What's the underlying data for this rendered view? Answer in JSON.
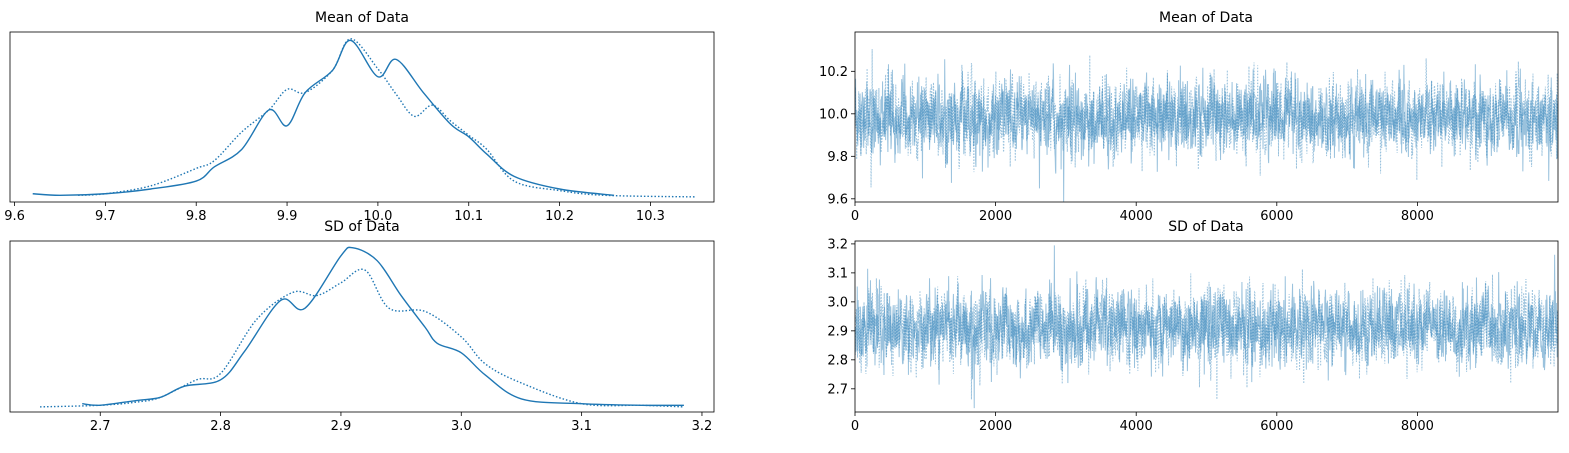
{
  "figure": {
    "panels_titles": [
      "Mean of Data",
      "Mean of Data",
      "SD of Data",
      "SD of Data"
    ]
  },
  "chart_data": [
    {
      "type": "line",
      "kind": "density",
      "title": "Mean of Data",
      "xlabel": "",
      "ylabel": "",
      "xlim": [
        9.595,
        10.37
      ],
      "x_ticks": [
        9.6,
        9.7,
        9.8,
        9.9,
        10.0,
        10.1,
        10.2,
        10.3
      ],
      "y_ticks_visible": false,
      "color": "#1f77b4",
      "series": [
        {
          "style": "solid",
          "x": [
            9.62,
            9.65,
            9.7,
            9.75,
            9.8,
            9.82,
            9.85,
            9.88,
            9.9,
            9.92,
            9.95,
            9.97,
            10.0,
            10.02,
            10.05,
            10.08,
            10.1,
            10.12,
            10.15,
            10.2,
            10.26
          ],
          "y": [
            0.02,
            0.01,
            0.02,
            0.05,
            0.1,
            0.19,
            0.3,
            0.55,
            0.45,
            0.66,
            0.8,
            0.99,
            0.76,
            0.87,
            0.66,
            0.46,
            0.38,
            0.27,
            0.13,
            0.05,
            0.01
          ]
        },
        {
          "style": "dotted",
          "x": [
            9.67,
            9.7,
            9.75,
            9.8,
            9.82,
            9.85,
            9.88,
            9.9,
            9.92,
            9.95,
            9.97,
            10.0,
            10.02,
            10.04,
            10.06,
            10.08,
            10.1,
            10.12,
            10.15,
            10.2,
            10.25,
            10.35
          ],
          "y": [
            0.01,
            0.02,
            0.07,
            0.18,
            0.23,
            0.41,
            0.55,
            0.68,
            0.66,
            0.8,
            1.0,
            0.81,
            0.65,
            0.51,
            0.58,
            0.48,
            0.39,
            0.3,
            0.1,
            0.04,
            0.01,
            0.0
          ]
        }
      ]
    },
    {
      "type": "line",
      "kind": "trace",
      "title": "Mean of Data",
      "xlabel": "",
      "ylabel": "",
      "xlim": [
        0,
        10000
      ],
      "ylim": [
        9.585,
        10.385
      ],
      "x_ticks": [
        0,
        2000,
        4000,
        6000,
        8000
      ],
      "y_ticks": [
        9.6,
        9.8,
        10.0,
        10.2
      ],
      "n_draws": 10000,
      "chain_center": 9.98,
      "chain_sd": 0.085,
      "color": "#1f77b4",
      "series_styles": [
        "solid",
        "dotted"
      ]
    },
    {
      "type": "line",
      "kind": "density",
      "title": "SD of Data",
      "xlabel": "",
      "ylabel": "",
      "xlim": [
        2.625,
        3.21
      ],
      "x_ticks": [
        2.7,
        2.8,
        2.9,
        3.0,
        3.1,
        3.2
      ],
      "y_ticks_visible": false,
      "color": "#1f77b4",
      "series": [
        {
          "style": "solid",
          "x": [
            2.685,
            2.7,
            2.73,
            2.75,
            2.77,
            2.8,
            2.82,
            2.85,
            2.87,
            2.9,
            2.91,
            2.93,
            2.95,
            2.97,
            2.98,
            3.0,
            3.02,
            3.05,
            3.1,
            3.15,
            3.185
          ],
          "y": [
            0.02,
            0.01,
            0.04,
            0.06,
            0.13,
            0.17,
            0.35,
            0.67,
            0.62,
            0.95,
            1.0,
            0.92,
            0.7,
            0.5,
            0.4,
            0.34,
            0.2,
            0.05,
            0.02,
            0.01,
            0.01
          ]
        },
        {
          "style": "dotted",
          "x": [
            2.65,
            2.7,
            2.73,
            2.75,
            2.78,
            2.8,
            2.83,
            2.86,
            2.88,
            2.9,
            2.92,
            2.94,
            2.97,
            3.0,
            3.02,
            3.05,
            3.1,
            3.15,
            3.185
          ],
          "y": [
            0.0,
            0.01,
            0.03,
            0.06,
            0.17,
            0.21,
            0.55,
            0.72,
            0.7,
            0.78,
            0.86,
            0.62,
            0.6,
            0.44,
            0.27,
            0.15,
            0.02,
            0.01,
            0.0
          ]
        }
      ]
    },
    {
      "type": "line",
      "kind": "trace",
      "title": "SD of Data",
      "xlabel": "",
      "ylabel": "",
      "xlim": [
        0,
        10000
      ],
      "ylim": [
        2.62,
        3.21
      ],
      "x_ticks": [
        0,
        2000,
        4000,
        6000,
        8000
      ],
      "y_ticks": [
        2.7,
        2.8,
        2.9,
        3.0,
        3.1,
        3.2
      ],
      "n_draws": 10000,
      "chain_center": 2.91,
      "chain_sd": 0.065,
      "color": "#1f77b4",
      "series_styles": [
        "solid",
        "dotted"
      ]
    }
  ]
}
